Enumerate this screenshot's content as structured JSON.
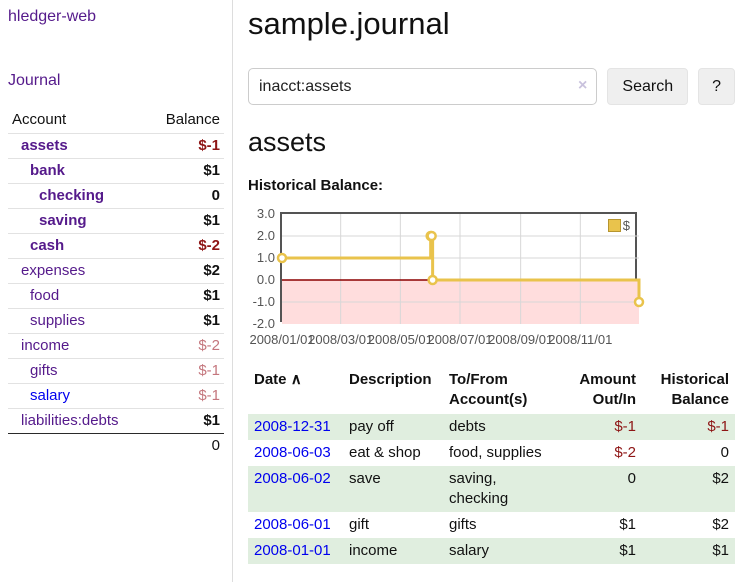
{
  "app": {
    "title": "hledger-web"
  },
  "sidebar": {
    "journal_label": "Journal",
    "accounts_table": {
      "headers": {
        "account": "Account",
        "balance": "Balance"
      },
      "rows": [
        {
          "name": "assets",
          "balance": "$-1",
          "depth": 1,
          "bold": true,
          "balance_color": "negative"
        },
        {
          "name": "bank",
          "balance": "$1",
          "depth": 2,
          "bold": true,
          "balance_color": "normal"
        },
        {
          "name": "checking",
          "balance": "0",
          "depth": 3,
          "bold": true,
          "balance_color": "normal"
        },
        {
          "name": "saving",
          "balance": "$1",
          "depth": 3,
          "bold": true,
          "balance_color": "normal"
        },
        {
          "name": "cash",
          "balance": "$-2",
          "depth": 2,
          "bold": true,
          "balance_color": "negative"
        },
        {
          "name": "expenses",
          "balance": "$2",
          "depth": 1,
          "bold": false,
          "balance_color": "normal"
        },
        {
          "name": "food",
          "balance": "$1",
          "depth": 2,
          "bold": false,
          "balance_color": "normal"
        },
        {
          "name": "supplies",
          "balance": "$1",
          "depth": 2,
          "bold": false,
          "balance_color": "normal"
        },
        {
          "name": "income",
          "balance": "$-2",
          "depth": 1,
          "bold": false,
          "balance_color": "negative-muted"
        },
        {
          "name": "gifts",
          "balance": "$-1",
          "depth": 2,
          "bold": false,
          "balance_color": "negative-muted"
        },
        {
          "name": "salary",
          "balance": "$-1",
          "depth": 2,
          "bold": false,
          "balance_color": "negative-muted",
          "link_color": "blue"
        },
        {
          "name": "liabilities:debts",
          "balance": "$1",
          "depth": 1,
          "bold": false,
          "balance_color": "normal"
        }
      ],
      "total": "0"
    }
  },
  "main": {
    "title": "sample.journal",
    "search": {
      "value": "inacct:assets",
      "clear_icon": "×",
      "button_label": "Search",
      "help_label": "?"
    },
    "account_heading": "assets",
    "chart_label": "Historical Balance:"
  },
  "chart_data": {
    "type": "line",
    "title": "Historical Balance",
    "step": true,
    "series": [
      {
        "name": "$",
        "color": "#e9c34c",
        "points": [
          [
            "2008-01-01",
            1
          ],
          [
            "2008-06-01",
            2
          ],
          [
            "2008-06-02",
            2
          ],
          [
            "2008-06-03",
            0
          ],
          [
            "2008-12-31",
            -1
          ]
        ]
      }
    ],
    "xlim": [
      "2008-01-01",
      "2008-12-31"
    ],
    "ylim": [
      -2,
      3
    ],
    "x_ticks": [
      "2008/01/01",
      "2008/03/01",
      "2008/05/01",
      "2008/07/01",
      "2008/09/01",
      "2008/11/01"
    ],
    "y_ticks": [
      "3.0",
      "2.0",
      "1.0",
      "0.0",
      "-1.0",
      "-2.0"
    ],
    "legend": {
      "label": "$",
      "position": "top-right"
    },
    "grid": true,
    "negative_region_color": "#ffdddd",
    "zero_line_color": "#8b0000",
    "gridline_color": "#d7d7d7",
    "border_color": "#545454"
  },
  "transactions": {
    "headers": {
      "date": "Date",
      "sort_icon": "∧",
      "description": "Description",
      "tofrom": "To/From\nAccount(s)",
      "amount": "Amount\nOut/In",
      "historical": "Historical\nBalance"
    },
    "rows": [
      {
        "date": "2008-12-31",
        "description": "pay off",
        "accounts": "debts",
        "amount": "$-1",
        "amount_neg": true,
        "historical": "$-1",
        "historical_neg": true
      },
      {
        "date": "2008-06-03",
        "description": "eat & shop",
        "accounts": "food, supplies",
        "amount": "$-2",
        "amount_neg": true,
        "historical": "0",
        "historical_neg": false
      },
      {
        "date": "2008-06-02",
        "description": "save",
        "accounts": "saving,\nchecking",
        "amount": "0",
        "amount_neg": false,
        "historical": "$2",
        "historical_neg": false
      },
      {
        "date": "2008-06-01",
        "description": "gift",
        "accounts": "gifts",
        "amount": "$1",
        "amount_neg": false,
        "historical": "$2",
        "historical_neg": false
      },
      {
        "date": "2008-01-01",
        "description": "income",
        "accounts": "salary",
        "amount": "$1",
        "amount_neg": false,
        "historical": "$1",
        "historical_neg": false
      }
    ]
  },
  "colors": {
    "link_purple": "#551a8b",
    "link_blue": "#0000ee",
    "negative": "#8e1515",
    "negative_muted": "#c4767d",
    "row_stripe_green": "#e0eedf",
    "chart_gold": "#e9c34c"
  }
}
